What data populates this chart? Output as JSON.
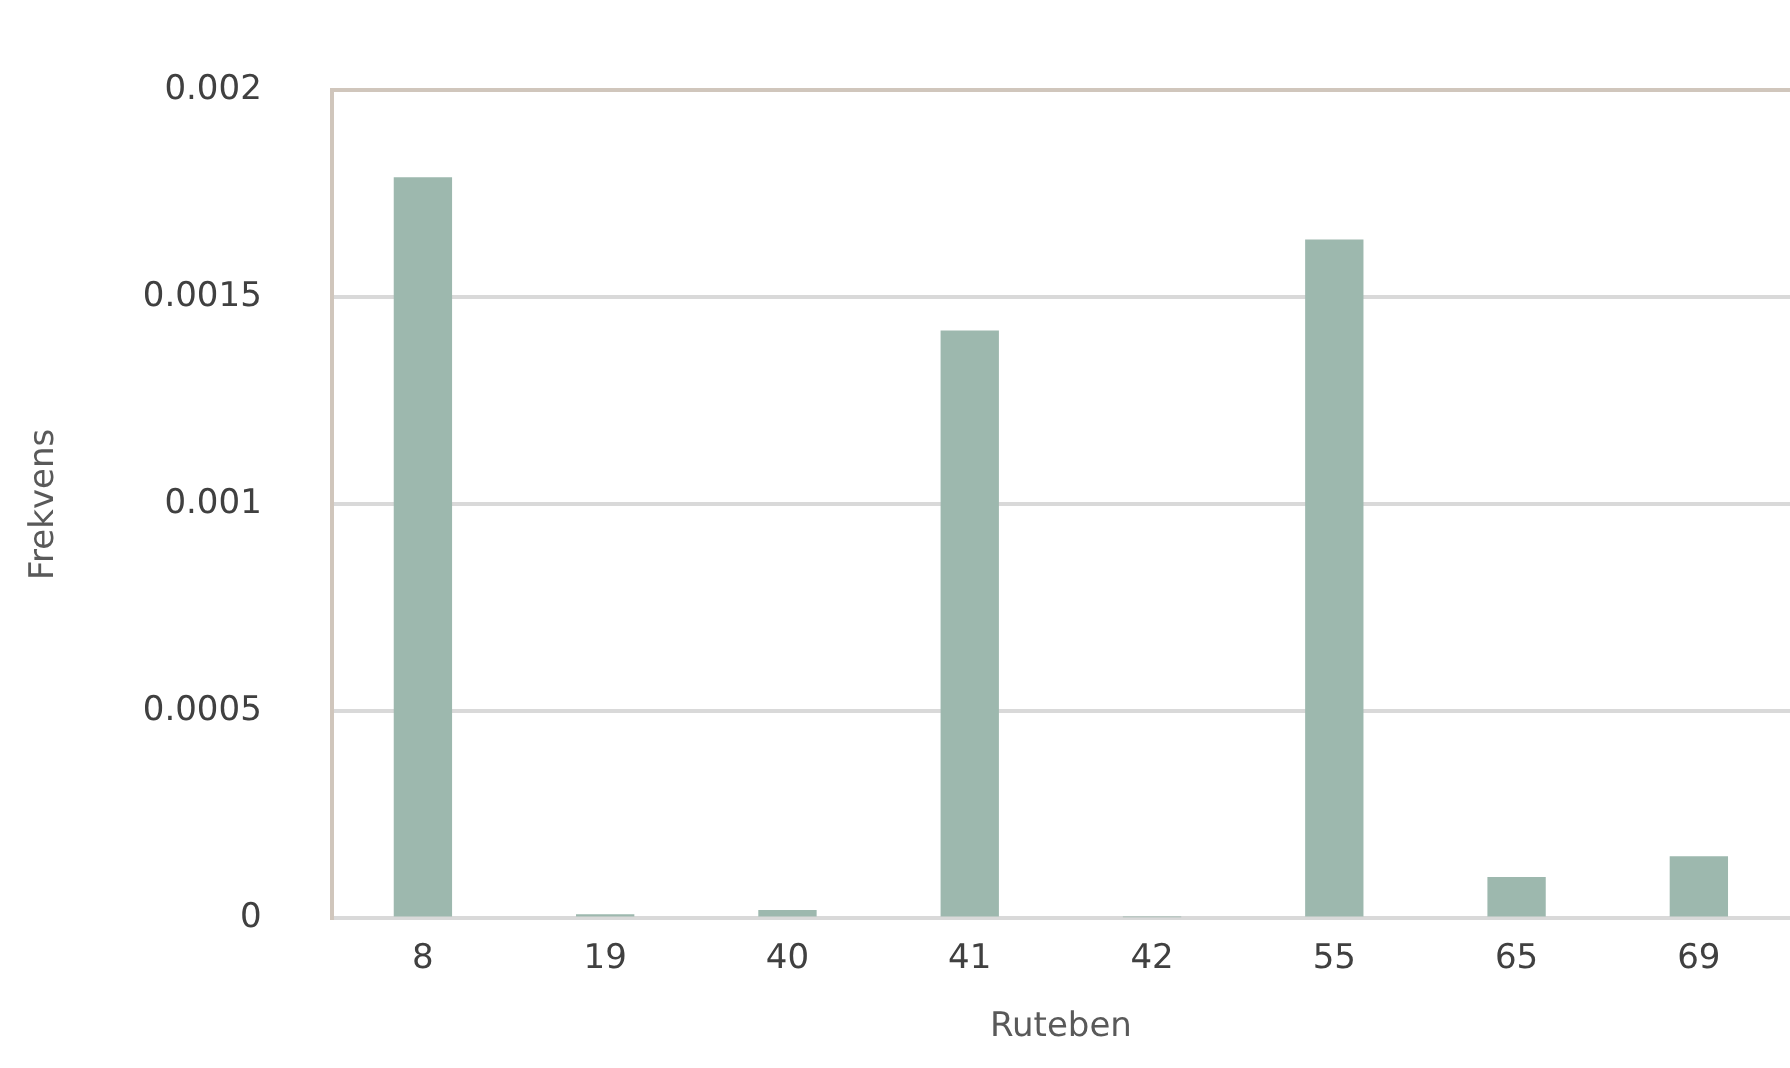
{
  "chart_data": {
    "type": "bar",
    "xlabel": "Ruteben",
    "ylabel": "Frekvens",
    "categories": [
      "8",
      "19",
      "40",
      "41",
      "42",
      "55",
      "65",
      "69"
    ],
    "values": [
      0.00179,
      1e-05,
      2e-05,
      0.00142,
      3e-06,
      0.00164,
      0.0001,
      0.00015
    ],
    "color": "#9db8ae",
    "ylim": [
      0,
      0.002
    ],
    "yticks": [
      0,
      0.0005,
      0.001,
      0.0015,
      0.002
    ],
    "grid": "y",
    "legend": false
  }
}
